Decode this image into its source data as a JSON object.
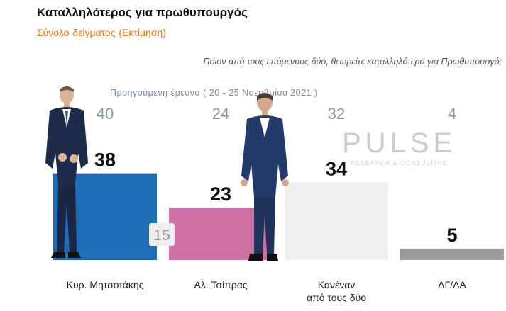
{
  "header": {
    "title": "Καταλληλότερος για πρωθυπουργός",
    "subtitle": "Σύνολο δείγματος   (Εκτίμηση)"
  },
  "question": "Ποιον από τους επόμενους δύο, θεωρείτε καταλληλότερο για Πρωθυπουργό;",
  "previous_survey_label": "Προηγούμενη έρευνα  ( 20 - 25 Νοεμβρίου  2021 )",
  "watermark": {
    "name": "PULSE",
    "tagline": "RESEARCH & CONSULTING"
  },
  "chart_data": {
    "type": "bar",
    "title": "Καταλληλότερος για πρωθυπουργός",
    "subtitle": "Σύνολο δείγματος   (Εκτίμηση)",
    "categories": [
      "Κυρ. Μητσοτάκης",
      "Αλ. Τσίπρας",
      "Κανέναν από τους δύο",
      "ΔΓ/ΔΑ"
    ],
    "category_lines": [
      [
        "Κυρ. Μητσοτάκης"
      ],
      [
        "Αλ. Τσίπρας"
      ],
      [
        "Κανέναν",
        "από τους δύο"
      ],
      [
        "ΔΓ/ΔΑ"
      ]
    ],
    "series": [
      {
        "values": [
          38,
          23,
          34,
          5
        ]
      },
      {
        "name": "Προηγούμενη έρευνα  ( 20 - 25 Νοεμβρίου  2021 )",
        "values": [
          40,
          24,
          32,
          4
        ]
      }
    ],
    "colors": [
      "#1f6db5",
      "#cd70a6",
      "#efefef",
      "#9b9b9b"
    ],
    "previous_value_color": "#8a98a8",
    "extra_annotation": "15",
    "ylim": [
      0,
      40
    ],
    "grid": false,
    "legend": "none"
  }
}
